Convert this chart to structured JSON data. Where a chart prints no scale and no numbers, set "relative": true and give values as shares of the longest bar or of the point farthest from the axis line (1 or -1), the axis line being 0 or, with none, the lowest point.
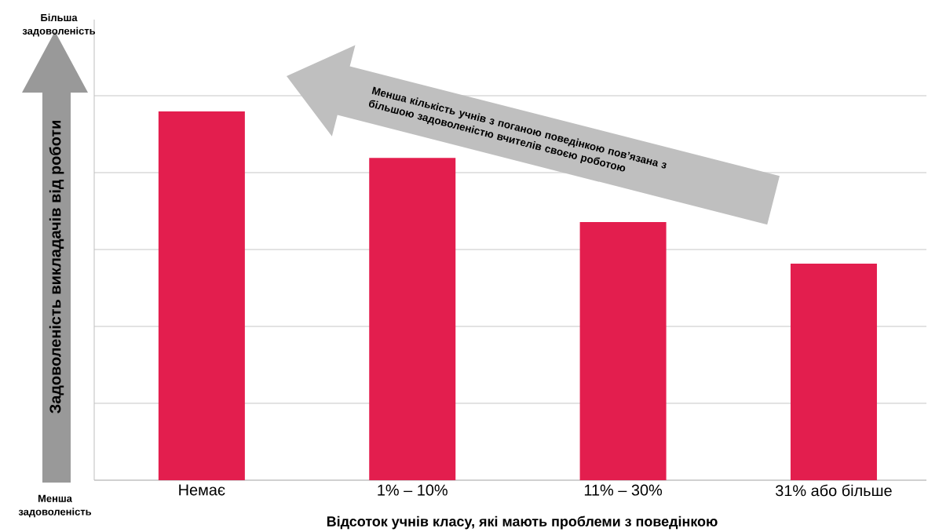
{
  "chart_data": {
    "type": "bar",
    "categories": [
      "Немає",
      "1% – 10%",
      "11% – 30%",
      "31% або більше"
    ],
    "values": [
      1,
      0.874,
      0.7,
      0.587
    ],
    "color": "#e31e4e",
    "relative": true,
    "grid": "y",
    "xlabel": "Відсоток учнів класу, які мають проблеми з поведінкою",
    "ylabel": "Задоволеність викладачів від роботи",
    "annotations": [
      "Більша задоволеність",
      "Менша задоволеність",
      "Менша кількість учнів з поганою поведінкою пов’язана з більшою задоволеністю вчителів своєю роботою"
    ]
  }
}
